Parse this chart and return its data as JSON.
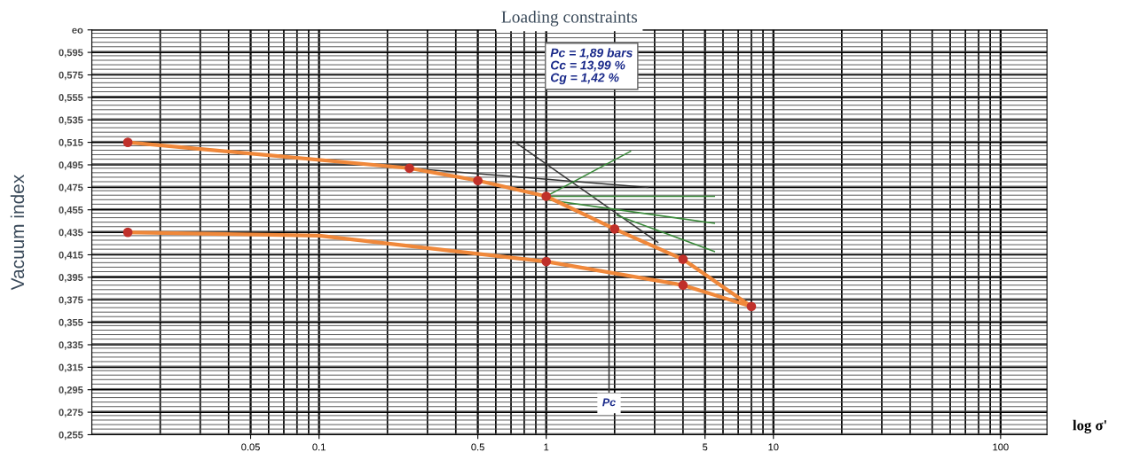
{
  "chart_data": {
    "type": "line",
    "title": "Loading constraints",
    "xlabel": "log σ'",
    "ylabel": "Vacuum index",
    "log": "x",
    "grid": true,
    "legend": false,
    "xlim": [
      0.01,
      160
    ],
    "xticks": [
      0.05,
      0.1,
      0.5,
      1,
      5,
      10,
      100
    ],
    "ylim": [
      0.255,
      0.615
    ],
    "yticks": [
      {
        "value": 0.255,
        "label": "0,255"
      },
      {
        "value": 0.275,
        "label": "0,275"
      },
      {
        "value": 0.295,
        "label": "0,295"
      },
      {
        "value": 0.315,
        "label": "0,315"
      },
      {
        "value": 0.335,
        "label": "0,335"
      },
      {
        "value": 0.355,
        "label": "0,355"
      },
      {
        "value": 0.375,
        "label": "0,375"
      },
      {
        "value": 0.395,
        "label": "0,395"
      },
      {
        "value": 0.415,
        "label": "0,415"
      },
      {
        "value": 0.435,
        "label": "0,435"
      },
      {
        "value": 0.455,
        "label": "0,455"
      },
      {
        "value": 0.475,
        "label": "0,475"
      },
      {
        "value": 0.495,
        "label": "0,495"
      },
      {
        "value": 0.515,
        "label": "0,515"
      },
      {
        "value": 0.535,
        "label": "0,535"
      },
      {
        "value": 0.555,
        "label": "0,555"
      },
      {
        "value": 0.575,
        "label": "0,575"
      },
      {
        "value": 0.595,
        "label": "0,595"
      },
      {
        "value": 0.615,
        "label": "eo"
      }
    ],
    "series": [
      {
        "color": "#f0883a",
        "x": [
          0.0144,
          0.25,
          0.5,
          1,
          2,
          4,
          8
        ],
        "values": [
          0.515,
          0.492,
          0.481,
          0.467,
          0.438,
          0.411,
          0.369
        ]
      },
      {
        "color": "#f0883a",
        "x": [
          8,
          4,
          1,
          0.1,
          0.0144
        ],
        "values": [
          0.369,
          0.388,
          0.409,
          0.432,
          0.435
        ]
      },
      {
        "type": "line",
        "color": "#333333",
        "x": [
          0.72,
          3.1
        ],
        "values": [
          0.516,
          0.426
        ]
      },
      {
        "type": "line",
        "color": "#333333",
        "x": [
          0.25,
          2.8
        ],
        "values": [
          0.492,
          0.475
        ]
      },
      {
        "type": "line",
        "color": "#3a8a3a",
        "x": [
          1,
          2.35
        ],
        "values": [
          0.467,
          0.507
        ]
      },
      {
        "type": "line",
        "color": "#3a8a3a",
        "x": [
          1,
          5.5
        ],
        "values": [
          0.467,
          0.467
        ]
      },
      {
        "type": "line",
        "color": "#3a8a3a",
        "x": [
          1,
          5.5
        ],
        "values": [
          0.464,
          0.443
        ]
      },
      {
        "type": "line",
        "color": "#3a8a3a",
        "x": [
          2.05,
          5.5
        ],
        "values": [
          0.45,
          0.418
        ]
      },
      {
        "type": "line",
        "color": "#333333",
        "x": [
          1.89,
          1.89
        ],
        "values": [
          0.455,
          0.293
        ]
      },
      {
        "type": "scatter",
        "color": "#c0302a",
        "marker": "circle",
        "x": [
          0.0144,
          0.25,
          0.5,
          1,
          2,
          4,
          8,
          4,
          1,
          0.0144
        ],
        "values": [
          0.515,
          0.492,
          0.481,
          0.467,
          0.438,
          0.411,
          0.369,
          0.388,
          0.409,
          0.435
        ]
      }
    ],
    "annotations": [
      "Pc = 1,89 bars",
      "Cc = 13,99 %",
      "Cg = 1,42 %",
      {
        "text": "Pc",
        "x": 1.89,
        "y": 0.283
      }
    ]
  }
}
